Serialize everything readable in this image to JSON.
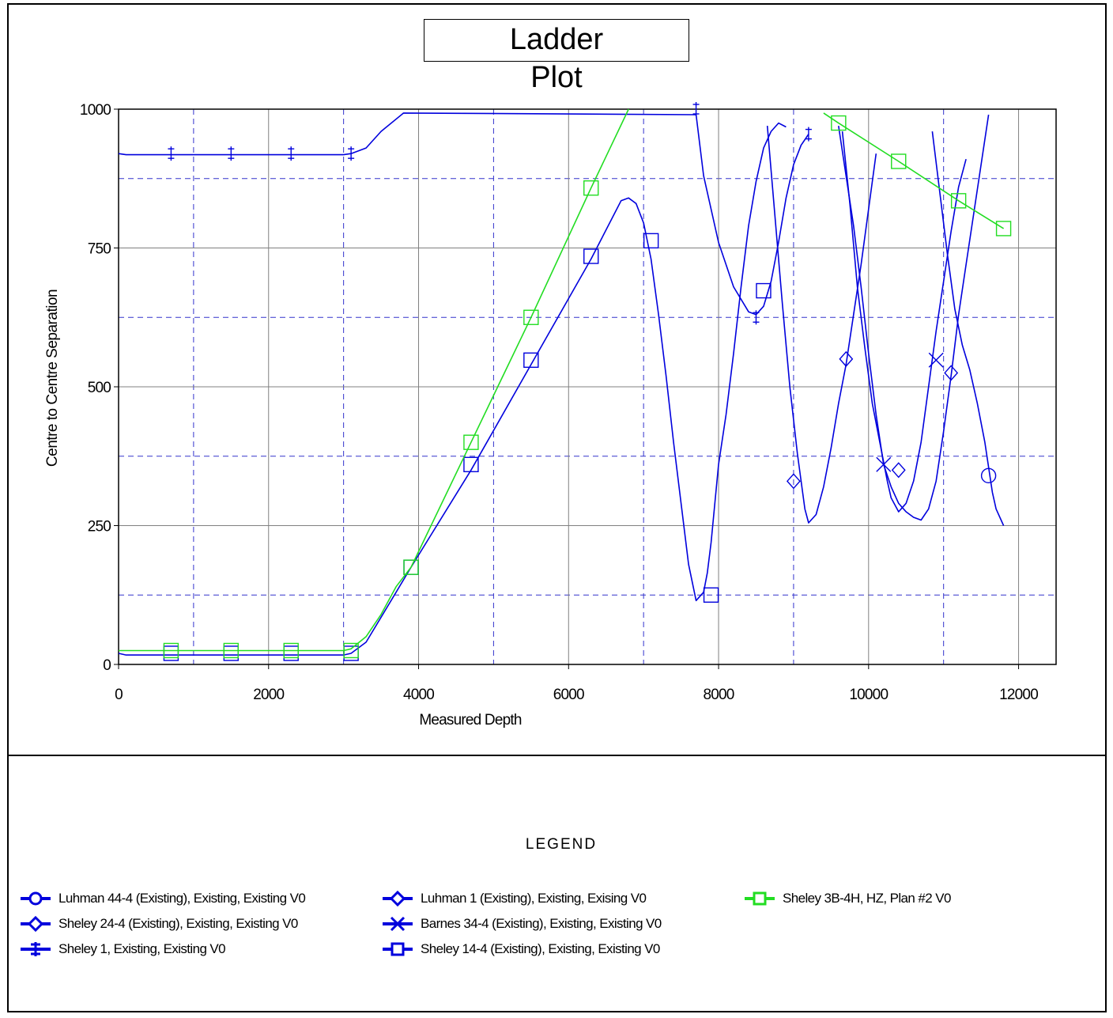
{
  "title_line1": "Ladder",
  "title_line2": "Plot",
  "legend_title": "LEGEND",
  "colors": {
    "blue": "#0000dd",
    "green": "#22dd22",
    "grid_solid": "#808080",
    "grid_dash": "#3333cc"
  },
  "chart_data": {
    "type": "line",
    "title": "Ladder Plot",
    "xlabel": "Measured Depth",
    "ylabel": "Centre to Centre Separation",
    "xlim": [
      0,
      12500
    ],
    "ylim": [
      0,
      1000
    ],
    "xticks": [
      0,
      2000,
      4000,
      6000,
      8000,
      10000,
      12000
    ],
    "yticks": [
      0,
      250,
      500,
      750,
      1000
    ],
    "grid": true,
    "legend_position": "bottom",
    "series": [
      {
        "name": "Luhman 44-4 (Existing), Existing, Existing V0",
        "color": "#0000dd",
        "marker": "circle",
        "x": [
          10850,
          10950,
          11050,
          11150,
          11250,
          11350,
          11450,
          11550,
          11650,
          11700,
          11800
        ],
        "y": [
          960,
          850,
          740,
          640,
          575,
          530,
          470,
          400,
          310,
          280,
          250
        ],
        "marker_points": [
          [
            11600,
            340
          ]
        ]
      },
      {
        "name": "Luhman 1 (Existing), Existing, Exising V0",
        "color": "#0000dd",
        "marker": "diamond",
        "x": [
          9650,
          9750,
          9850,
          9950,
          10050,
          10150,
          10250,
          10300,
          10400,
          10500,
          10600,
          10700,
          10800,
          10900,
          11000,
          11100,
          11200,
          11300
        ],
        "y": [
          960,
          830,
          680,
          570,
          470,
          400,
          330,
          300,
          275,
          290,
          330,
          400,
          500,
          600,
          690,
          780,
          860,
          910
        ],
        "marker_points": [
          [
            10400,
            350
          ],
          [
            11100,
            525
          ]
        ]
      },
      {
        "name": "Sheley 24-4 (Existing), Existing, Existing V0",
        "color": "#0000dd",
        "marker": "diamond",
        "x": [
          8650,
          8750,
          8850,
          8950,
          9050,
          9150,
          9200,
          9300,
          9400,
          9500,
          9600,
          9700,
          9800,
          9900,
          10000,
          10100
        ],
        "y": [
          970,
          810,
          650,
          500,
          380,
          280,
          255,
          270,
          320,
          390,
          470,
          540,
          630,
          720,
          820,
          920
        ],
        "marker_points": [
          [
            9000,
            330
          ],
          [
            9700,
            550
          ]
        ]
      },
      {
        "name": "Barnes 34-4 (Existing), Existing, Existing V0",
        "color": "#0000dd",
        "marker": "x",
        "x": [
          9600,
          9700,
          9800,
          9900,
          10000,
          10100,
          10200,
          10300,
          10400,
          10500,
          10600,
          10700,
          10800,
          10900,
          11000,
          11100,
          11200,
          11300,
          11400,
          11500,
          11600
        ],
        "y": [
          970,
          880,
          790,
          680,
          560,
          450,
          360,
          320,
          290,
          275,
          265,
          260,
          280,
          330,
          420,
          520,
          630,
          720,
          810,
          900,
          990
        ],
        "marker_points": [
          [
            10200,
            360
          ],
          [
            10900,
            548
          ]
        ]
      },
      {
        "name": "Sheley 1, Existing, Existing V0",
        "color": "#0000dd",
        "marker": "dagger",
        "x": [
          0,
          100,
          1000,
          2000,
          3000,
          3100,
          3300,
          3500,
          3800,
          7700,
          7800,
          8000,
          8200,
          8400,
          8500,
          8600,
          8700,
          8800,
          8900,
          9000,
          9100,
          9200
        ],
        "y": [
          920,
          918,
          918,
          918,
          918,
          920,
          930,
          960,
          993,
          990,
          880,
          760,
          680,
          635,
          630,
          645,
          690,
          760,
          840,
          900,
          935,
          955
        ],
        "marker_points": [
          [
            700,
            920
          ],
          [
            1500,
            920
          ],
          [
            2300,
            920
          ],
          [
            3100,
            920
          ],
          [
            7700,
            1000
          ],
          [
            8500,
            625
          ],
          [
            9200,
            955
          ]
        ]
      },
      {
        "name": "Sheley 14-4 (Existing), Existing, Existing V0",
        "color": "#0000dd",
        "marker": "square",
        "x": [
          0,
          100,
          1000,
          2000,
          3000,
          3100,
          3300,
          3500,
          3700,
          3900,
          4700,
          5500,
          6300,
          6700,
          6800,
          6900,
          7000,
          7100,
          7200,
          7300,
          7400,
          7500,
          7600,
          7700,
          7800,
          7850,
          7900,
          7950,
          8000,
          8100,
          8200,
          8300,
          8400,
          8500,
          8600,
          8700,
          8800,
          8900
        ],
        "y": [
          20,
          17,
          17,
          17,
          17,
          20,
          40,
          85,
          130,
          175,
          350,
          540,
          730,
          835,
          840,
          830,
          795,
          730,
          630,
          520,
          400,
          290,
          180,
          115,
          130,
          165,
          220,
          290,
          360,
          450,
          560,
          680,
          790,
          870,
          930,
          960,
          975,
          968
        ],
        "marker_points": [
          [
            700,
            20
          ],
          [
            1500,
            20
          ],
          [
            2300,
            20
          ],
          [
            3100,
            20
          ],
          [
            3900,
            175
          ],
          [
            4700,
            360
          ],
          [
            5500,
            548
          ],
          [
            6300,
            735
          ],
          [
            7100,
            763
          ],
          [
            7900,
            125
          ],
          [
            8600,
            673
          ]
        ]
      },
      {
        "name": "Sheley 3B-4H, HZ, Plan #2 V0",
        "color": "#22dd22",
        "marker": "square",
        "x": [
          0,
          100,
          1000,
          2000,
          3000,
          3100,
          3300,
          3500,
          3700,
          3900,
          4700,
          5500,
          6300,
          6800,
          9400,
          9600,
          10400,
          11200,
          11800
        ],
        "y": [
          25,
          25,
          25,
          25,
          25,
          28,
          50,
          90,
          140,
          175,
          400,
          625,
          858,
          1000,
          993,
          975,
          906,
          835,
          785
        ],
        "break_after_index": 13,
        "marker_points": [
          [
            700,
            25
          ],
          [
            1500,
            25
          ],
          [
            2300,
            25
          ],
          [
            3100,
            25
          ],
          [
            3900,
            175
          ],
          [
            4700,
            400
          ],
          [
            5500,
            625
          ],
          [
            6300,
            858
          ],
          [
            9600,
            975
          ],
          [
            10400,
            906
          ],
          [
            11200,
            835
          ],
          [
            11800,
            785
          ]
        ]
      }
    ]
  }
}
